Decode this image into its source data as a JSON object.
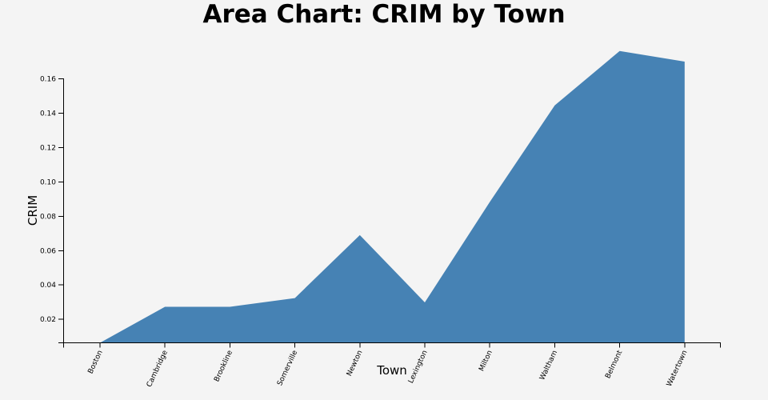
{
  "chart_data": {
    "type": "area",
    "title": "Area Chart: CRIM by Town",
    "xlabel": "Town",
    "ylabel": "CRIM",
    "categories": [
      "Boston",
      "Cambridge",
      "Brookline",
      "Somerville",
      "Newton",
      "Lexington",
      "Milton",
      "Waltham",
      "Belmont",
      "Watertown"
    ],
    "values": [
      0.00632,
      0.02731,
      0.02729,
      0.03237,
      0.06905,
      0.02985,
      0.08829,
      0.14455,
      0.17621,
      0.17004
    ],
    "ylim": [
      0.00632,
      0.17004
    ],
    "yticks": [
      "0.02",
      "0.04",
      "0.06",
      "0.08",
      "0.10",
      "0.12",
      "0.14",
      "0.16"
    ],
    "grid": false,
    "legend": "none",
    "fill_color": "#4682b4",
    "background_color": "#f4f4f4"
  }
}
